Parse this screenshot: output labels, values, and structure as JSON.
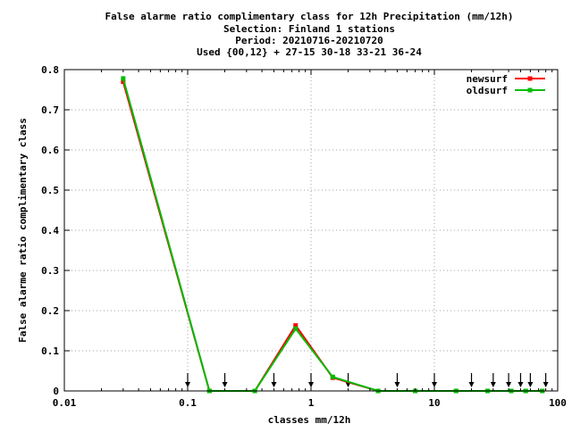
{
  "chart_data": {
    "type": "line",
    "title_lines": [
      "False alarme ratio complimentary class  for 12h Precipitation (mm/12h)",
      "Selection: Finland       1 stations",
      "Period: 20210716-20210720",
      "Used {00,12} + 27-15 30-18 33-21 36-24"
    ],
    "xlabel": "classes mm/12h",
    "ylabel": "False alarme ratio complimentary class",
    "x_scale": "log",
    "xlim": [
      0.01,
      100
    ],
    "ylim": [
      0,
      0.8
    ],
    "x_ticks": [
      {
        "value": 0.01,
        "label": "0.01"
      },
      {
        "value": 0.1,
        "label": "0.1"
      },
      {
        "value": 1,
        "label": "1"
      },
      {
        "value": 10,
        "label": "10"
      },
      {
        "value": 100,
        "label": "100"
      }
    ],
    "y_ticks": [
      {
        "value": 0,
        "label": "0"
      },
      {
        "value": 0.1,
        "label": "0.1"
      },
      {
        "value": 0.2,
        "label": "0.2"
      },
      {
        "value": 0.3,
        "label": "0.3"
      },
      {
        "value": 0.4,
        "label": "0.4"
      },
      {
        "value": 0.5,
        "label": "0.5"
      },
      {
        "value": 0.6,
        "label": "0.6"
      },
      {
        "value": 0.7,
        "label": "0.7"
      },
      {
        "value": 0.8,
        "label": "0.8"
      }
    ],
    "grid": true,
    "legend_position": "top-right",
    "series": [
      {
        "name": "newsurf",
        "color": "#ff0000",
        "x": [
          0.03,
          0.15,
          0.35,
          0.75,
          1.5,
          3.5,
          7,
          15,
          27,
          42,
          55,
          75
        ],
        "y": [
          0.77,
          0.0,
          0.0,
          0.163,
          0.033,
          0.0,
          0.0,
          0.0,
          0.0,
          0.0,
          0.0,
          0.0
        ]
      },
      {
        "name": "oldsurf",
        "color": "#00bb00",
        "x": [
          0.03,
          0.15,
          0.35,
          0.75,
          1.5,
          3.5,
          7,
          15,
          27,
          42,
          55,
          75
        ],
        "y": [
          0.778,
          0.0,
          0.0,
          0.155,
          0.035,
          0.0,
          0.0,
          0.0,
          0.0,
          0.0,
          0.0,
          0.0
        ]
      }
    ],
    "threshold_arrows_x": [
      0.1,
      0.2,
      0.5,
      1,
      2,
      5,
      10,
      20,
      30,
      40,
      50,
      60,
      80
    ]
  }
}
